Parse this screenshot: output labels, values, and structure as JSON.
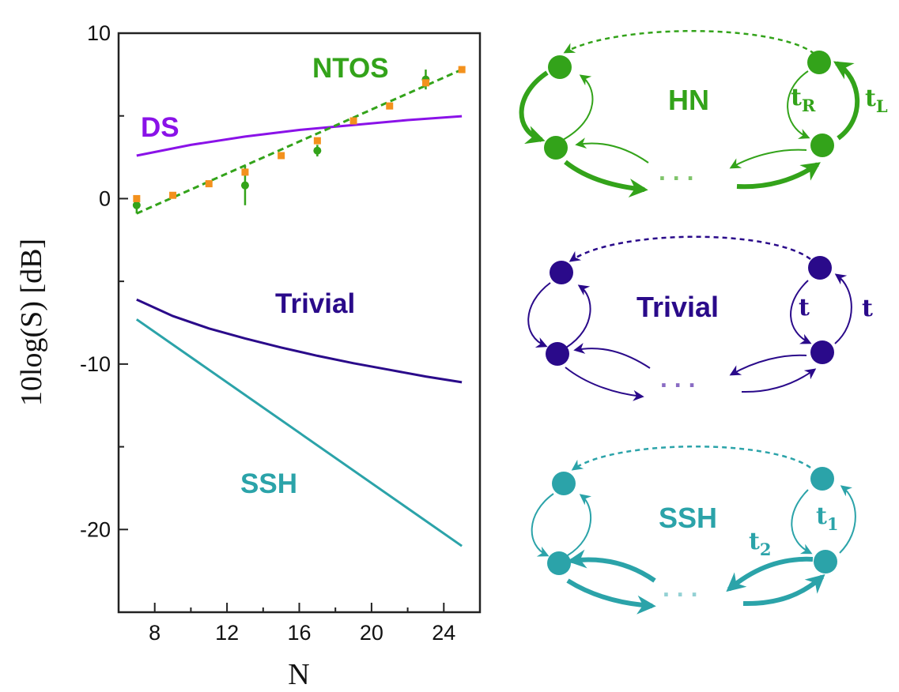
{
  "chart_data": {
    "type": "line",
    "xlabel": "N",
    "ylabel": "10log(S) [dB]",
    "xlim": [
      6,
      26
    ],
    "ylim": [
      -25,
      10
    ],
    "xticks": [
      8,
      12,
      16,
      20,
      24
    ],
    "yticks": [
      10,
      0,
      -10,
      -20
    ],
    "grid": false,
    "series": [
      {
        "name": "DS",
        "style": "solid",
        "color": "#8a12e8",
        "x": [
          7,
          10,
          13,
          16,
          19,
          22,
          25
        ],
        "y": [
          2.6,
          3.25,
          3.75,
          4.15,
          4.45,
          4.75,
          4.98
        ]
      },
      {
        "name": "Trivial",
        "style": "solid",
        "color": "#2a0a8a",
        "x": [
          7,
          9,
          11,
          13,
          15,
          17,
          19,
          21,
          23,
          25
        ],
        "y": [
          -6.1,
          -7.1,
          -7.85,
          -8.45,
          -9.0,
          -9.5,
          -9.95,
          -10.35,
          -10.75,
          -11.1
        ]
      },
      {
        "name": "SSH",
        "style": "solid",
        "color": "#2ba3a9",
        "x": [
          7,
          25
        ],
        "y": [
          -7.3,
          -21.0
        ]
      },
      {
        "name": "NTOS",
        "style": "dashed",
        "color": "#33a31a",
        "x": [
          7,
          25
        ],
        "y": [
          -0.9,
          7.8
        ]
      },
      {
        "name": "",
        "style": "markers-circle-errorbar",
        "color": "#33a31a",
        "x": [
          7,
          13,
          17,
          23
        ],
        "y": [
          -0.4,
          0.8,
          2.9,
          7.2
        ],
        "err": [
          0.5,
          1.2,
          0.35,
          0.6
        ]
      },
      {
        "name": "",
        "style": "markers-square",
        "color": "#f3911d",
        "x": [
          7,
          9,
          11,
          13,
          15,
          17,
          19,
          21,
          23,
          25
        ],
        "y": [
          0.0,
          0.2,
          0.9,
          1.6,
          2.6,
          3.5,
          4.7,
          5.6,
          7.0,
          7.8
        ]
      }
    ]
  },
  "diagrams": {
    "hn": {
      "title": "HN",
      "hop1_base": "t",
      "hop1_sub": "R",
      "hop2_base": "t",
      "hop2_sub": "L",
      "dots": ". . .",
      "color": "#33a31a"
    },
    "trivial": {
      "title": "Trivial",
      "hop1_base": "t",
      "hop1_sub": "",
      "hop2_base": "t",
      "hop2_sub": "",
      "dots": ". . .",
      "color": "#2a0a8a"
    },
    "ssh": {
      "title": "SSH",
      "hop1_base": "t",
      "hop1_sub": "1",
      "hop2_base": "t",
      "hop2_sub": "2",
      "dots": ". . .",
      "color": "#2ba3a9"
    }
  }
}
